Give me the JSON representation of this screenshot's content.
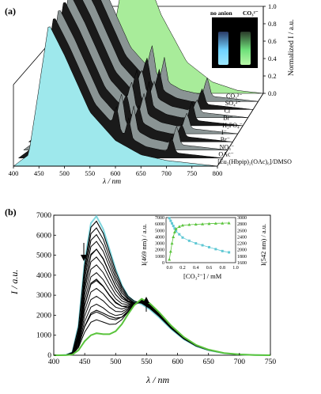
{
  "figure": {
    "panel_a": {
      "panel_label": "(a)",
      "x_axis_label": "λ / nm",
      "x_ticks": [
        "400",
        "450",
        "500",
        "550",
        "600",
        "650",
        "700",
        "750",
        "800"
      ],
      "z_axis_label": "Normalized I / a.u.",
      "z_ticks": [
        "0.0",
        "0.2",
        "0.4",
        "0.6",
        "0.8",
        "1.0"
      ],
      "series_labels": [
        "CO₃²⁻",
        "SO₄²⁻",
        "Cl⁻",
        "Br⁻",
        "H₂PO₄⁻",
        "I⁻",
        "Br⁻",
        "NO₃⁻",
        "OAc⁻",
        "[Eu₂(Hbpip)₂(OAc)₆]/DMSO"
      ],
      "inset_labels": [
        "no anion",
        "CO₃²⁻"
      ],
      "colors": {
        "blue_series": "#9ee8ec",
        "green_series": "#a8ec9a",
        "dark_series": "#1a1a1a",
        "grey_series": "#8a9494"
      }
    },
    "panel_b": {
      "panel_label": "(b)",
      "x_axis_label": "λ / nm",
      "y_axis_label": "I / a.u.",
      "x_ticks": [
        "400",
        "450",
        "500",
        "550",
        "600",
        "650",
        "700",
        "750"
      ],
      "y_ticks": [
        "0",
        "1000",
        "2000",
        "3000",
        "4000",
        "5000",
        "6000",
        "7000"
      ],
      "inset": {
        "x_label": "[CO₃²⁻] / mM",
        "y_left_label": "I(469 nm) / a.u.",
        "y_right_label": "I(542 nm) / a.u.",
        "x_ticks": [
          "0.0",
          "0.2",
          "0.4",
          "0.6",
          "0.8",
          "1.0"
        ],
        "y_left_ticks": [
          "0",
          "1000",
          "2000",
          "3000",
          "4000",
          "5000",
          "6000",
          "7000"
        ],
        "y_right_ticks": [
          "1600",
          "1800",
          "2000",
          "2200",
          "2400",
          "2600",
          "2800",
          "3000"
        ]
      }
    }
  },
  "chart_data": [
    {
      "type": "area",
      "title": "",
      "xlabel": "λ / nm",
      "ylabel": "Normalized I / a.u.",
      "xlim": [
        400,
        800
      ],
      "zlim": [
        0,
        1.0
      ],
      "series": [
        {
          "name": "[Eu₂(Hbpip)₂(OAc)₆]/DMSO",
          "peak_nm": 469,
          "color": "#9ee8ec",
          "x": [
            400,
            430,
            450,
            469,
            500,
            550,
            600,
            650,
            700,
            750,
            800
          ],
          "y": [
            0.0,
            0.08,
            0.55,
            1.0,
            0.78,
            0.38,
            0.18,
            0.08,
            0.04,
            0.02,
            0.0
          ]
        },
        {
          "name": "OAc⁻",
          "peak_nm": 469
        },
        {
          "name": "NO₃⁻",
          "peak_nm": 469
        },
        {
          "name": "Br⁻",
          "peak_nm": 469
        },
        {
          "name": "I⁻",
          "peak_nm": 469
        },
        {
          "name": "H₂PO₄⁻",
          "peak_nm": 469
        },
        {
          "name": "Br⁻",
          "peak_nm": 469
        },
        {
          "name": "Cl⁻",
          "peak_nm": 469
        },
        {
          "name": "SO₄²⁻",
          "peak_nm": 469
        },
        {
          "name": "CO₃²⁻",
          "peak_nm": 542,
          "color": "#a8ec9a",
          "x": [
            400,
            450,
            500,
            520,
            542,
            560,
            600,
            650,
            700,
            750,
            800
          ],
          "y": [
            0.0,
            0.02,
            0.3,
            0.7,
            1.0,
            0.92,
            0.55,
            0.22,
            0.08,
            0.02,
            0.0
          ]
        }
      ]
    },
    {
      "type": "line",
      "title": "",
      "xlabel": "λ / nm",
      "ylabel": "I / a.u.",
      "xlim": [
        400,
        750
      ],
      "ylim": [
        0,
        7000
      ],
      "x": [
        400,
        410,
        420,
        430,
        440,
        450,
        460,
        469,
        480,
        490,
        500,
        510,
        520,
        530,
        542,
        555,
        570,
        590,
        610,
        630,
        650,
        675,
        700,
        725,
        750
      ],
      "series": [
        {
          "color": "#7fd6de",
          "values": [
            0,
            0,
            20,
            150,
            1500,
            4700,
            6600,
            6950,
            6300,
            5300,
            4300,
            3500,
            2950,
            2700,
            2550,
            2300,
            1900,
            1300,
            800,
            450,
            250,
            100,
            40,
            10,
            0
          ]
        },
        {
          "color": "#000000",
          "values": [
            0,
            0,
            20,
            140,
            1400,
            4500,
            6400,
            6700,
            6100,
            5150,
            4200,
            3450,
            2950,
            2700,
            2600,
            2350,
            1950,
            1330,
            820,
            460,
            255,
            100,
            40,
            10,
            0
          ]
        },
        {
          "color": "#000000",
          "values": [
            0,
            0,
            15,
            110,
            1100,
            3500,
            5000,
            5300,
            4800,
            4100,
            3450,
            2950,
            2680,
            2620,
            2620,
            2400,
            2000,
            1360,
            840,
            470,
            260,
            105,
            40,
            10,
            0
          ]
        },
        {
          "color": "#000000",
          "values": [
            0,
            0,
            10,
            80,
            800,
            2500,
            3600,
            3800,
            3450,
            3000,
            2650,
            2450,
            2400,
            2550,
            2660,
            2450,
            2040,
            1390,
            860,
            480,
            265,
            105,
            40,
            10,
            0
          ]
        },
        {
          "color": "#000000",
          "values": [
            0,
            0,
            8,
            50,
            480,
            1450,
            2100,
            2250,
            2100,
            1950,
            1850,
            1900,
            2150,
            2500,
            2720,
            2500,
            2080,
            1420,
            880,
            490,
            270,
            110,
            40,
            10,
            0
          ]
        },
        {
          "color": "#5ac43c",
          "values": [
            0,
            0,
            5,
            30,
            250,
            700,
            1000,
            1100,
            1050,
            1050,
            1200,
            1550,
            2050,
            2500,
            2820,
            2600,
            2150,
            1470,
            910,
            510,
            280,
            110,
            40,
            10,
            0
          ]
        }
      ]
    },
    {
      "type": "scatter",
      "title": "",
      "xlabel": "[CO₃²⁻] / mM",
      "ylabel": "I(469 nm) / a.u.",
      "ylabel_right": "I(542 nm) / a.u.",
      "xlim": [
        -0.05,
        1.0
      ],
      "ylim": [
        0,
        7000
      ],
      "ylim_right": [
        1600,
        3000
      ],
      "series": [
        {
          "axis": "left",
          "marker": "square",
          "color": "#5fc8d4",
          "x": [
            0.0,
            0.02,
            0.04,
            0.06,
            0.08,
            0.1,
            0.15,
            0.2,
            0.3,
            0.4,
            0.5,
            0.6,
            0.7,
            0.8,
            0.9
          ],
          "y": [
            6900,
            6500,
            6100,
            5700,
            5300,
            4900,
            4400,
            3900,
            3400,
            3000,
            2700,
            2400,
            2100,
            1800,
            1600
          ]
        },
        {
          "axis": "right",
          "marker": "triangle",
          "color": "#5ac43c",
          "x": [
            0.0,
            0.02,
            0.04,
            0.06,
            0.08,
            0.1,
            0.15,
            0.2,
            0.3,
            0.4,
            0.5,
            0.6,
            0.7,
            0.8,
            0.9
          ],
          "y": [
            1700,
            1950,
            2200,
            2400,
            2550,
            2650,
            2720,
            2760,
            2780,
            2790,
            2800,
            2810,
            2820,
            2825,
            2830
          ]
        }
      ]
    }
  ]
}
